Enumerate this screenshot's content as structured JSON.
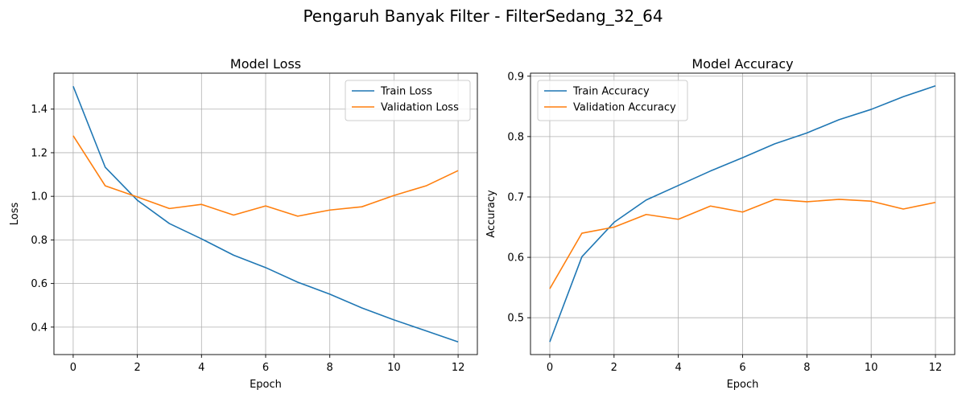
{
  "figure": {
    "suptitle": "Pengaruh Banyak Filter - FilterSedang_32_64"
  },
  "chart_data": [
    {
      "type": "line",
      "title": "Model Loss",
      "xlabel": "Epoch",
      "ylabel": "Loss",
      "xlim": [
        -0.6,
        12.6
      ],
      "ylim": [
        0.274,
        1.565
      ],
      "xticks": [
        0,
        2,
        4,
        6,
        8,
        10,
        12
      ],
      "yticks": [
        0.4,
        0.6,
        0.8,
        1.0,
        1.2,
        1.4
      ],
      "ytick_labels": [
        "0.4",
        "0.6",
        "0.8",
        "1.0",
        "1.2",
        "1.4"
      ],
      "grid": true,
      "legend": "top-right",
      "x": [
        0,
        1,
        2,
        3,
        4,
        5,
        6,
        7,
        8,
        9,
        10,
        11,
        12
      ],
      "series": [
        {
          "name": "Train Loss",
          "color": "#1f77b4",
          "values": [
            1.505,
            1.133,
            0.982,
            0.875,
            0.805,
            0.73,
            0.673,
            0.606,
            0.551,
            0.488,
            0.433,
            0.383,
            0.332
          ]
        },
        {
          "name": "Validation Loss",
          "color": "#ff7f0e",
          "values": [
            1.278,
            1.048,
            0.997,
            0.944,
            0.963,
            0.914,
            0.956,
            0.909,
            0.937,
            0.952,
            1.004,
            1.048,
            1.118
          ]
        }
      ]
    },
    {
      "type": "line",
      "title": "Model Accuracy",
      "xlabel": "Epoch",
      "ylabel": "Accuracy",
      "xlim": [
        -0.6,
        12.6
      ],
      "ylim": [
        0.439,
        0.905
      ],
      "xticks": [
        0,
        2,
        4,
        6,
        8,
        10,
        12
      ],
      "yticks": [
        0.5,
        0.6,
        0.7,
        0.8,
        0.9
      ],
      "ytick_labels": [
        "0.5",
        "0.6",
        "0.7",
        "0.8",
        "0.9"
      ],
      "grid": true,
      "legend": "top-left",
      "x": [
        0,
        1,
        2,
        3,
        4,
        5,
        6,
        7,
        8,
        9,
        10,
        11,
        12
      ],
      "series": [
        {
          "name": "Train Accuracy",
          "color": "#1f77b4",
          "values": [
            0.46,
            0.601,
            0.658,
            0.695,
            0.719,
            0.743,
            0.765,
            0.788,
            0.806,
            0.828,
            0.845,
            0.866,
            0.884
          ]
        },
        {
          "name": "Validation Accuracy",
          "color": "#ff7f0e",
          "values": [
            0.548,
            0.64,
            0.65,
            0.671,
            0.663,
            0.685,
            0.675,
            0.696,
            0.692,
            0.696,
            0.693,
            0.68,
            0.691
          ]
        }
      ]
    }
  ]
}
